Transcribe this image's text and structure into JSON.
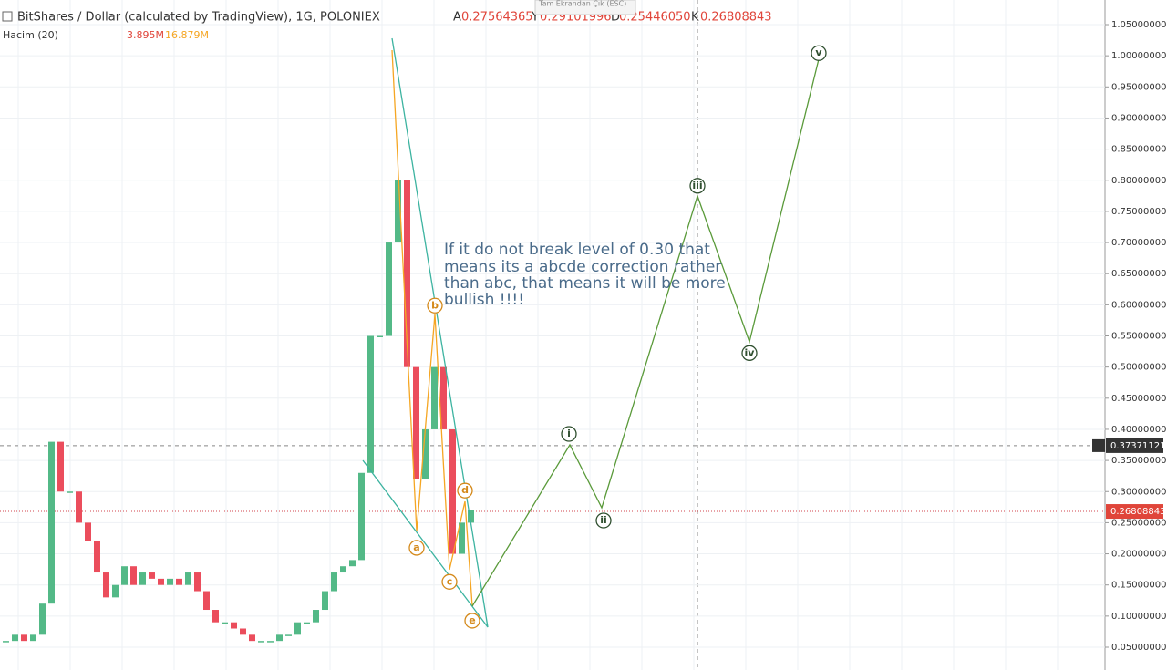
{
  "header": {
    "title": "BitShares / Dollar (calculated by TradingView), 1G, POLONIEX",
    "ohlc": [
      {
        "key": "A",
        "value": "0.27564365"
      },
      {
        "key": "Y",
        "value": "0.29101996"
      },
      {
        "key": "D",
        "value": "0.25446050"
      },
      {
        "key": "K",
        "value": "0.26808843"
      }
    ],
    "tooltip": "Tam Ekrandan Çık (ESC)"
  },
  "volume": {
    "label": "Hacim (20)",
    "value": "3.895M",
    "ma": "16.879M"
  },
  "price_axis": {
    "ylim": [
      0.05,
      1.05
    ],
    "yticks": [
      {
        "value": 1.05,
        "label": "1.05000000"
      },
      {
        "value": 1.0,
        "label": "1.00000000"
      },
      {
        "value": 0.95,
        "label": "0.95000000"
      },
      {
        "value": 0.9,
        "label": "0.90000000"
      },
      {
        "value": 0.85,
        "label": "0.85000000"
      },
      {
        "value": 0.8,
        "label": "0.80000000"
      },
      {
        "value": 0.75,
        "label": "0.75000000"
      },
      {
        "value": 0.7,
        "label": "0.70000000"
      },
      {
        "value": 0.65,
        "label": "0.65000000"
      },
      {
        "value": 0.6,
        "label": "0.60000000"
      },
      {
        "value": 0.55,
        "label": "0.55000000"
      },
      {
        "value": 0.5,
        "label": "0.50000000"
      },
      {
        "value": 0.45,
        "label": "0.45000000"
      },
      {
        "value": 0.4,
        "label": "0.40000000"
      },
      {
        "value": 0.35,
        "label": "0.35000000"
      },
      {
        "value": 0.3,
        "label": "0.30000000"
      },
      {
        "value": 0.25,
        "label": "0.25000000"
      },
      {
        "value": 0.2,
        "label": "0.20000000"
      },
      {
        "value": 0.15,
        "label": "0.15000000"
      },
      {
        "value": 0.1,
        "label": "0.10000000"
      },
      {
        "value": 0.05,
        "label": "0.05000000"
      }
    ],
    "crosshair": {
      "value": 0.37371121,
      "label": "0.37371121"
    },
    "last_price": {
      "value": 0.26808843,
      "label": "0.26808843"
    }
  },
  "closes": [
    0.06,
    0.07,
    0.06,
    0.07,
    0.12,
    0.38,
    0.3,
    0.3,
    0.25,
    0.22,
    0.17,
    0.13,
    0.15,
    0.18,
    0.15,
    0.17,
    0.16,
    0.15,
    0.16,
    0.15,
    0.17,
    0.14,
    0.11,
    0.09,
    0.09,
    0.08,
    0.07,
    0.06,
    0.06,
    0.06,
    0.07,
    0.07,
    0.09,
    0.09,
    0.11,
    0.14,
    0.17,
    0.18,
    0.19,
    0.33,
    0.55,
    0.55,
    0.7,
    0.8,
    0.5,
    0.32,
    0.4,
    0.5,
    0.4,
    0.2,
    0.25,
    0.27
  ],
  "waves": [
    {
      "label": "a",
      "price": 0.236,
      "color": "#d4891a"
    },
    {
      "label": "b",
      "price": 0.584,
      "color": "#d4891a"
    },
    {
      "label": "c",
      "price": 0.174,
      "color": "#d4891a"
    },
    {
      "label": "d",
      "price": 0.284,
      "color": "#d4891a"
    },
    {
      "label": "e",
      "price": 0.116,
      "color": "#d4891a"
    },
    {
      "label": "i",
      "price": 0.375,
      "color": "#2f4f2f"
    },
    {
      "label": "ii",
      "price": 0.274,
      "color": "#2f4f2f"
    },
    {
      "label": "iii",
      "price": 0.775,
      "color": "#2f4f2f"
    },
    {
      "label": "iv",
      "price": 0.54,
      "color": "#2f4f2f"
    },
    {
      "label": "v",
      "price": 0.994,
      "color": "#2f4f2f"
    }
  ],
  "annotation": [
    "If it do not break level of 0.30 that",
    "means its a abcde correction rather",
    "than abc, that means it will be more",
    "bullish !!!!"
  ]
}
